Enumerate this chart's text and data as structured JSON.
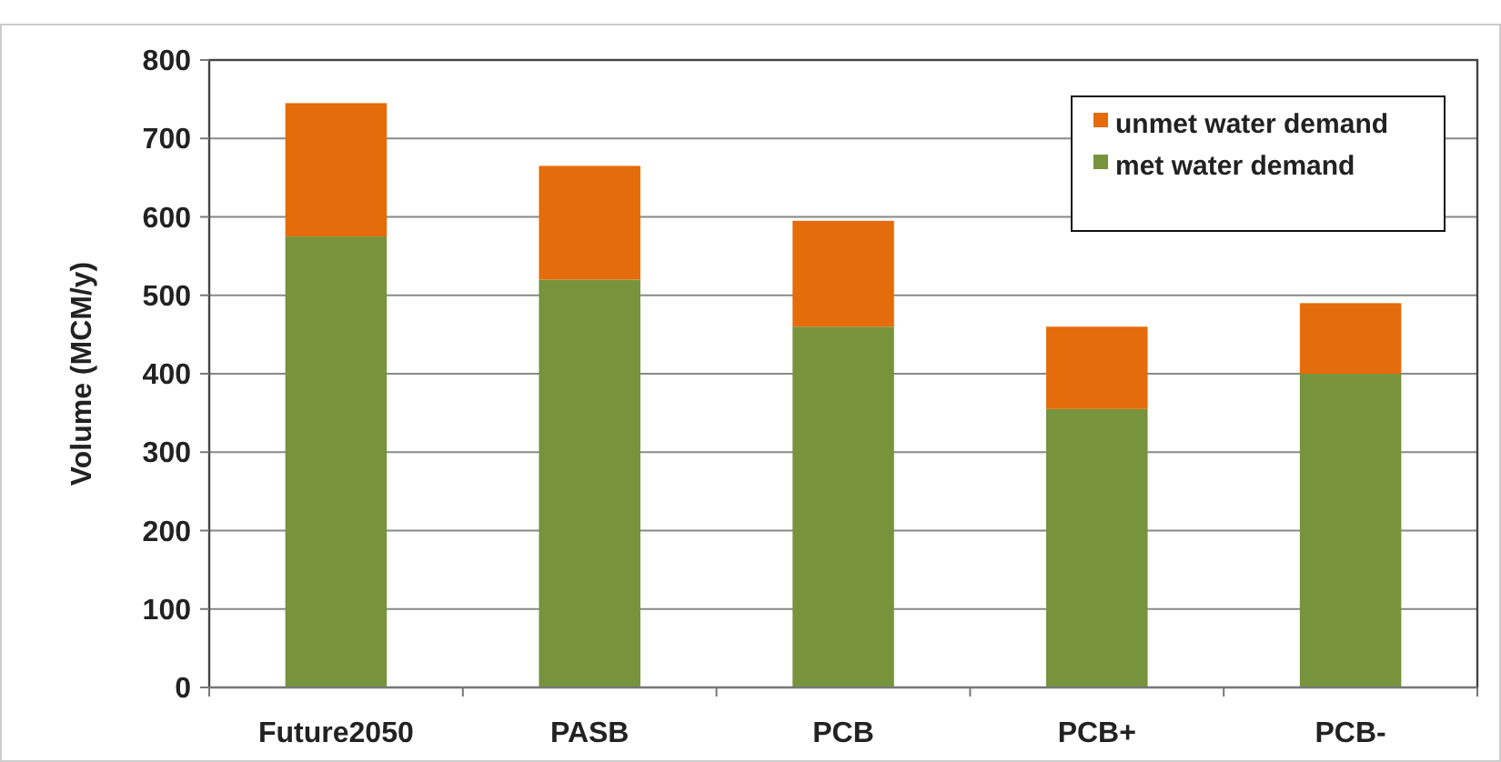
{
  "chart_data": {
    "type": "bar",
    "ylabel": "Volume (MCM/y)",
    "categories": [
      "Future2050",
      "PASB",
      "PCB",
      "PCB+",
      "PCB-"
    ],
    "stacked": true,
    "series": [
      {
        "name": "met water demand",
        "color": "#77933c",
        "values": [
          575,
          520,
          460,
          355,
          400
        ]
      },
      {
        "name": "unmet water demand",
        "color": "#e46c0a",
        "values": [
          170,
          145,
          135,
          105,
          90
        ]
      }
    ],
    "ylim": [
      0,
      800
    ],
    "yticks": [
      0,
      100,
      200,
      300,
      400,
      500,
      600,
      700,
      800
    ],
    "grid": "y",
    "legend": "top right"
  }
}
